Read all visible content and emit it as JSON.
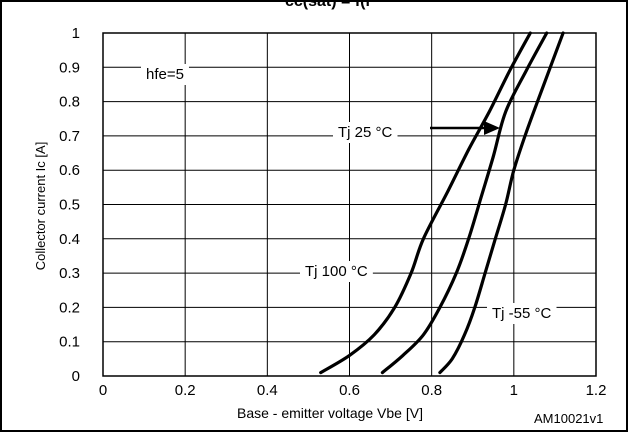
{
  "header_fragment": "cc(sat) = f(l",
  "chart_data": {
    "type": "line",
    "title": "",
    "xlabel": "Base - emitter voltage  Vbe [V]",
    "ylabel": "Collector current Ic [A]",
    "xlim": [
      0,
      1.2
    ],
    "ylim": [
      0,
      1
    ],
    "x_ticks": [
      "0",
      "0.2",
      "0.4",
      "0.6",
      "0.8",
      "1",
      "1.2"
    ],
    "y_ticks": [
      "0",
      "0.1",
      "0.2",
      "0.3",
      "0.4",
      "0.5",
      "0.6",
      "0.7",
      "0.8",
      "0.9",
      "1"
    ],
    "grid": true,
    "series": [
      {
        "name": "Tj 100 °C",
        "points": [
          [
            0.53,
            0.01
          ],
          [
            0.6,
            0.06
          ],
          [
            0.66,
            0.12
          ],
          [
            0.71,
            0.2
          ],
          [
            0.75,
            0.3
          ],
          [
            0.78,
            0.4
          ],
          [
            0.84,
            0.54
          ],
          [
            0.89,
            0.66
          ],
          [
            0.94,
            0.77
          ],
          [
            0.99,
            0.89
          ],
          [
            1.04,
            1.0
          ]
        ]
      },
      {
        "name": "Tj 25 °C",
        "points": [
          [
            0.68,
            0.01
          ],
          [
            0.73,
            0.06
          ],
          [
            0.78,
            0.12
          ],
          [
            0.82,
            0.2
          ],
          [
            0.86,
            0.3
          ],
          [
            0.89,
            0.4
          ],
          [
            0.92,
            0.52
          ],
          [
            0.95,
            0.64
          ],
          [
            0.98,
            0.77
          ],
          [
            1.03,
            0.89
          ],
          [
            1.08,
            1.0
          ]
        ]
      },
      {
        "name": "Tj -55 °C",
        "points": [
          [
            0.82,
            0.01
          ],
          [
            0.85,
            0.05
          ],
          [
            0.88,
            0.12
          ],
          [
            0.905,
            0.2
          ],
          [
            0.93,
            0.3
          ],
          [
            0.955,
            0.4
          ],
          [
            0.98,
            0.5
          ],
          [
            1.0,
            0.6
          ],
          [
            1.03,
            0.71
          ],
          [
            1.07,
            0.84
          ],
          [
            1.12,
            1.0
          ]
        ]
      }
    ],
    "annotations": [
      {
        "text": "hfe=5"
      },
      {
        "text": "Tj 25 °C"
      },
      {
        "text": "Tj 100 °C"
      },
      {
        "text": "Tj -55 °C"
      }
    ],
    "figure_id": "AM10021v1"
  }
}
